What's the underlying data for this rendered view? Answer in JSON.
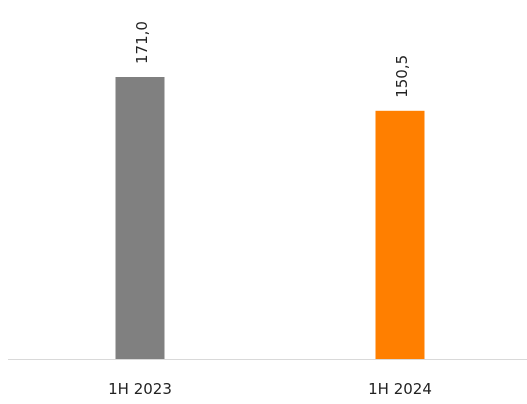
{
  "chart_data": {
    "type": "bar",
    "categories": [
      "1H 2023",
      "1H 2024"
    ],
    "values": [
      171.0,
      150.5
    ],
    "value_labels": [
      "171,0",
      "150,5"
    ],
    "colors": [
      "#808080",
      "#ff7f00"
    ]
  }
}
